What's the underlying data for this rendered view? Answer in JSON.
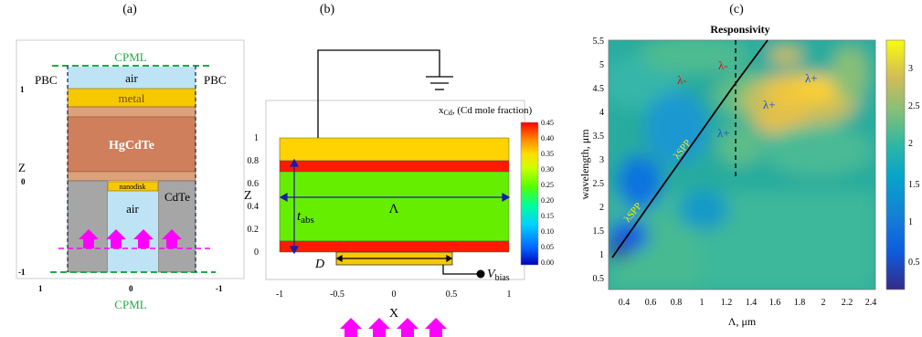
{
  "panel_a": {
    "label": "(a)",
    "cpml_top": "CPML",
    "cpml_bottom": "CPML",
    "pbc_left": "PBC",
    "pbc_right": "PBC",
    "layer_air_top": "air",
    "layer_metal": "metal",
    "layer_hgcdte": "HgCdTe",
    "layer_nanodisk": "nanodisk",
    "layer_cdte": "CdTe",
    "layer_air_bottom": "air",
    "axis_z": "Z",
    "z_ticks": [
      "1",
      "0",
      "-1"
    ],
    "x_ticks": [
      "1",
      "0",
      "-1"
    ],
    "colors": {
      "air": "#bde3f5",
      "metal": "#f6c800",
      "buffer": "#dda27a",
      "hgcdte": "#cf7f5c",
      "cdte": "#a6a6a6",
      "cpml": "#22aa44",
      "arrow": "#ff00ff"
    }
  },
  "panel_b": {
    "label": "(b)",
    "axis_z": "Z",
    "axis_x": "X",
    "x_ticks": [
      "-1",
      "-0.5",
      "0",
      "0.5",
      "1"
    ],
    "z_ticks": [
      "1",
      "0.8",
      "0.6",
      "0.4",
      "0.2",
      "0"
    ],
    "colorbar_title": "x",
    "colorbar_sub": "Cd",
    "colorbar_suffix": ", (Cd mole fraction)",
    "colorbar_ticks": [
      "0.45",
      "0.40",
      "0.35",
      "0.30",
      "0.25",
      "0.20",
      "0.15",
      "0.10",
      "0.05",
      "0.00"
    ],
    "label_tabs_main": "t",
    "label_tabs_sub": "abs",
    "label_period": "Λ",
    "label_d": "D",
    "label_vbias_main": "V",
    "label_vbias_sub": "bias",
    "colors": {
      "cap": "#ffd200",
      "barrier": "#ff1a00",
      "absorber": "#66ee00",
      "disk": "#f6c800",
      "arrow": "#ff00ff",
      "dim": "#1a1aa8"
    }
  },
  "panel_c": {
    "label": "(c)",
    "title": "Responsivity",
    "xlabel": "Λ, μm",
    "ylabel": "wavelength, μm",
    "x_ticks": [
      "0.4",
      "0.6",
      "0.8",
      "1",
      "1.2",
      "1.4",
      "1.6",
      "1.8",
      "2",
      "2.2",
      "2.4"
    ],
    "y_ticks": [
      "5.5",
      "5",
      "4.5",
      "4",
      "3.5",
      "3",
      "2.5",
      "2",
      "1.5",
      "1",
      "0.5"
    ],
    "colorbar_ticks": [
      "3",
      "2.5",
      "2",
      "1.5",
      "1",
      "0.5"
    ],
    "label_lminus_1": "λ-",
    "label_lminus_2": "λ-",
    "label_lplus_1": "λ+",
    "label_lplus_2": "λ+",
    "label_lplus_3": "λ+",
    "label_lspp_1": "λSPP",
    "label_lspp_2": "λSPP"
  }
}
